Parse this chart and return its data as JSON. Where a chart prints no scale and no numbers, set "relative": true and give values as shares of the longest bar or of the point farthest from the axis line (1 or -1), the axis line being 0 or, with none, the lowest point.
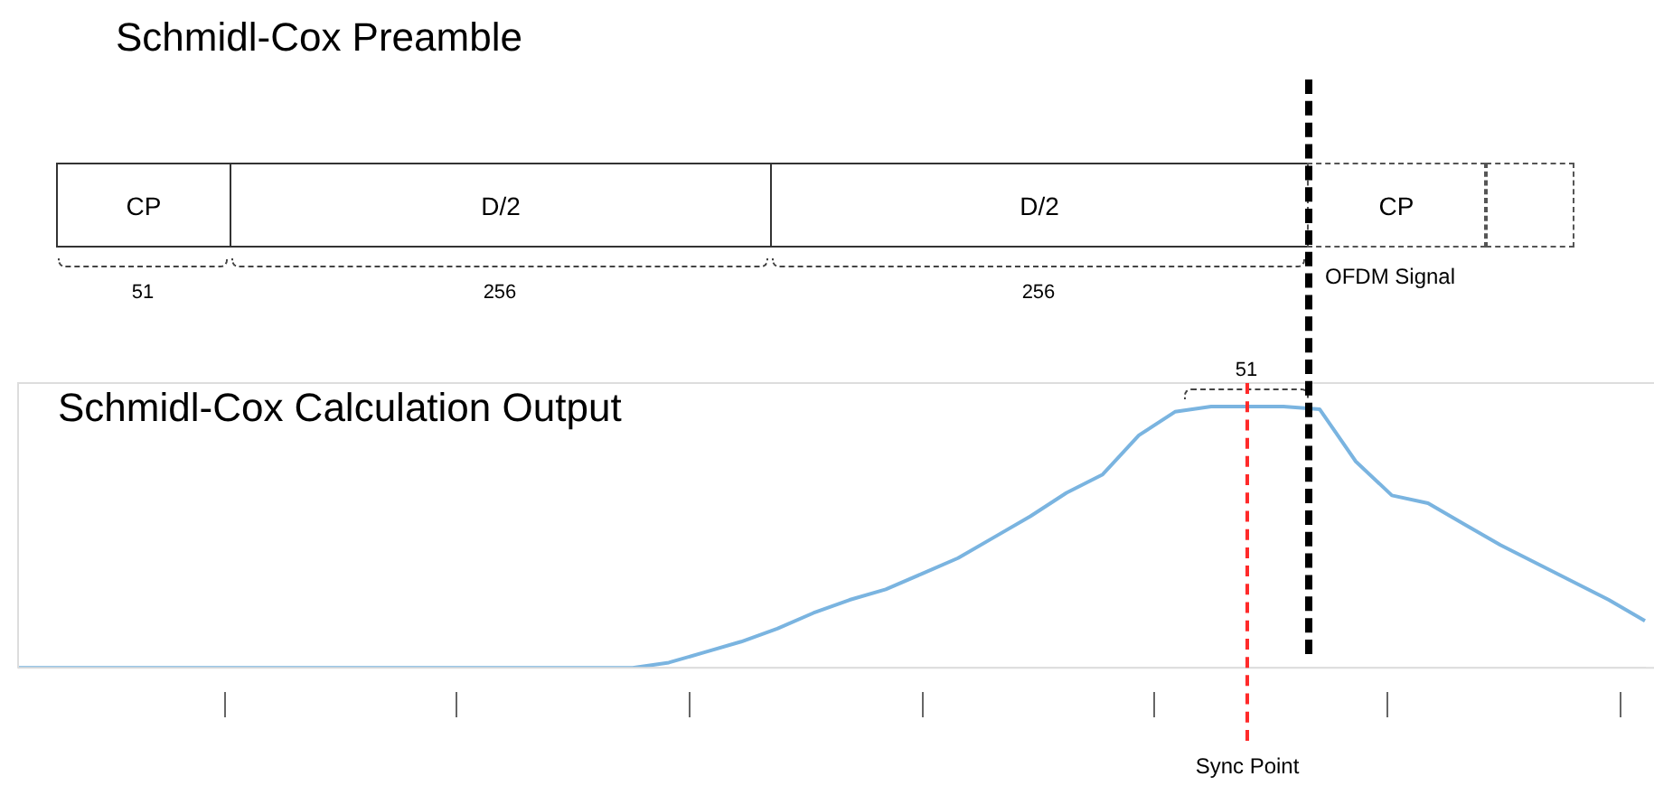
{
  "chart_data": [
    {
      "type": "other",
      "title": "Schmidl-Cox Preamble",
      "categories": [
        "CP",
        "D/2",
        "D/2",
        "CP",
        null
      ],
      "annotations": [
        "51",
        "256",
        "256",
        "OFDM Signal"
      ]
    },
    {
      "type": "line",
      "title": "Schmidl-Cox Calculation Output",
      "relative": true,
      "categories": [
        null,
        null,
        null,
        null,
        null,
        null,
        null,
        null,
        null,
        null,
        null,
        null,
        null,
        null,
        null,
        null,
        null,
        null,
        null,
        null,
        null,
        null,
        null,
        null,
        null,
        null,
        null,
        null,
        null,
        null,
        null,
        null,
        null,
        null,
        null,
        null,
        null,
        null,
        null,
        null,
        null,
        null,
        null,
        null,
        null,
        null
      ],
      "series": [
        {
          "color": "#7ab4e0",
          "values": [
            0,
            0,
            0,
            0,
            0,
            0,
            0,
            0,
            0,
            0,
            0,
            0,
            0,
            0,
            0,
            0,
            0,
            0,
            0.02,
            0.06,
            0.1,
            0.15,
            0.21,
            0.26,
            0.3,
            0.36,
            0.42,
            0.5,
            0.58,
            0.67,
            0.74,
            0.89,
            0.98,
            1,
            1,
            1,
            0.99,
            0.79,
            0.66,
            0.63,
            0.55,
            0.47,
            0.4,
            0.33,
            0.26,
            0.18
          ]
        }
      ],
      "annotations": [
        "51",
        "Sync Point"
      ],
      "legend": false,
      "marker": "none",
      "line_style": "solid"
    }
  ]
}
